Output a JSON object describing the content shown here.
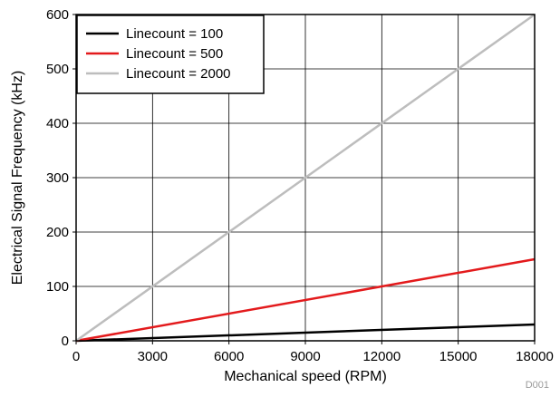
{
  "chart_data": {
    "type": "line",
    "title": "",
    "xlabel": "Mechanical speed (RPM)",
    "ylabel": "Electrical Signal Frequency (kHz)",
    "xlim": [
      0,
      18000
    ],
    "ylim": [
      0,
      600
    ],
    "xticks": [
      "0",
      "3000",
      "6000",
      "9000",
      "12000",
      "15000",
      "18000"
    ],
    "yticks": [
      "0",
      "100",
      "200",
      "300",
      "400",
      "500",
      "600"
    ],
    "grid": true,
    "legend_position": "top-left",
    "series": [
      {
        "name": "Linecount = 100",
        "color": "#000000",
        "x": [
          0,
          18000
        ],
        "y": [
          0,
          30
        ]
      },
      {
        "name": "Linecount = 500",
        "color": "#e31a1c",
        "x": [
          0,
          18000
        ],
        "y": [
          0,
          150
        ]
      },
      {
        "name": "Linecount = 2000",
        "color": "#bdbdbd",
        "x": [
          0,
          18000
        ],
        "y": [
          0,
          600
        ]
      }
    ],
    "footnote": "D001"
  }
}
